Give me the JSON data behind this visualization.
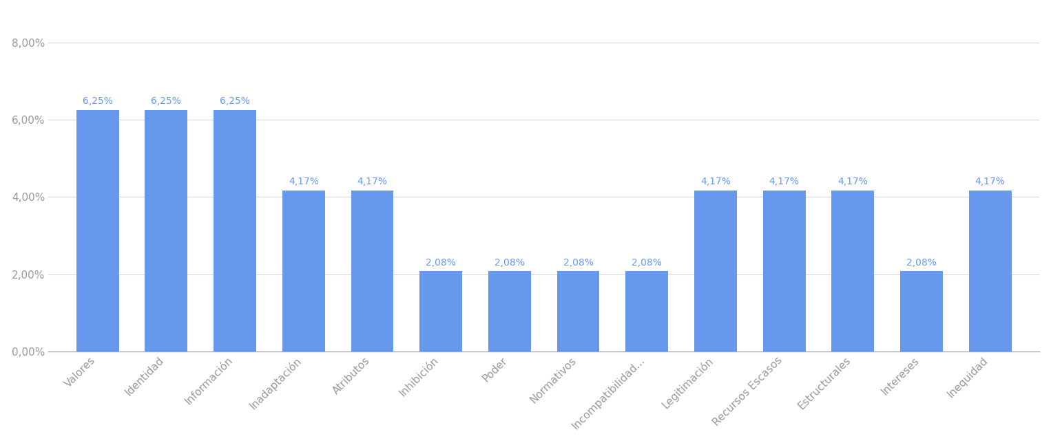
{
  "categories": [
    "Valores",
    "Identidad",
    "Información",
    "Inadaptación",
    "Atributos",
    "Inhibición",
    "Poder",
    "Normativos",
    "Incompatibilidad...",
    "Legitimación",
    "Recursos Escasos",
    "Estructurales",
    "Intereses",
    "Inequidad"
  ],
  "values": [
    6.25,
    6.25,
    6.25,
    4.17,
    4.17,
    2.08,
    2.08,
    2.08,
    2.08,
    4.17,
    4.17,
    4.17,
    2.08,
    4.17
  ],
  "bar_color": "#6699ee",
  "label_color": "#6699ee",
  "label_fontsize": 10,
  "ylabel_ticks": [
    "0,00%",
    "2,00%",
    "4,00%",
    "6,00%",
    "8,00%"
  ],
  "ytick_values": [
    0.0,
    2.0,
    4.0,
    6.0,
    8.0
  ],
  "ylim": [
    0,
    8.8
  ],
  "background_color": "#ffffff",
  "grid_color": "#d8d8d8",
  "tick_label_color": "#999999",
  "tick_label_fontsize": 11,
  "bar_width": 0.62,
  "bottom_spine_color": "#aaaaaa"
}
